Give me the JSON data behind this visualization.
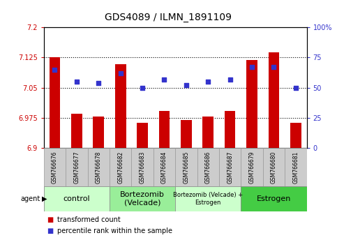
{
  "title": "GDS4089 / ILMN_1891109",
  "samples": [
    "GSM766676",
    "GSM766677",
    "GSM766678",
    "GSM766682",
    "GSM766683",
    "GSM766684",
    "GSM766685",
    "GSM766686",
    "GSM766687",
    "GSM766679",
    "GSM766680",
    "GSM766681"
  ],
  "bar_values": [
    7.125,
    6.985,
    6.978,
    7.108,
    6.963,
    6.993,
    6.97,
    6.978,
    6.993,
    7.118,
    7.137,
    6.963
  ],
  "dot_values": [
    65,
    55,
    54,
    62,
    50,
    57,
    52,
    55,
    57,
    67,
    67,
    50
  ],
  "ylim_left": [
    6.9,
    7.2
  ],
  "ylim_right": [
    0,
    100
  ],
  "yticks_left": [
    6.9,
    6.975,
    7.05,
    7.125,
    7.2
  ],
  "ytick_labels_left": [
    "6.9",
    "6.975",
    "7.05",
    "7.125",
    "7.2"
  ],
  "yticks_right": [
    0,
    25,
    50,
    75,
    100
  ],
  "ytick_labels_right": [
    "0",
    "25",
    "50",
    "75",
    "100%"
  ],
  "hlines": [
    7.125,
    7.05,
    6.975
  ],
  "bar_color": "#cc0000",
  "dot_color": "#3333cc",
  "bar_bottom": 6.9,
  "agent_groups": [
    {
      "label": "control",
      "start": 0,
      "end": 3,
      "color": "#ccffcc",
      "fontsize": 8
    },
    {
      "label": "Bortezomib\n(Velcade)",
      "start": 3,
      "end": 6,
      "color": "#99ee99",
      "fontsize": 8
    },
    {
      "label": "Bortezomib (Velcade) +\nEstrogen",
      "start": 6,
      "end": 9,
      "color": "#ccffcc",
      "fontsize": 6
    },
    {
      "label": "Estrogen",
      "start": 9,
      "end": 12,
      "color": "#44cc44",
      "fontsize": 8
    }
  ],
  "legend_labels": [
    "transformed count",
    "percentile rank within the sample"
  ],
  "legend_colors": [
    "#cc0000",
    "#3333cc"
  ],
  "agent_label": "agent",
  "tick_bg_color": "#cccccc",
  "tick_border_color": "#999999"
}
